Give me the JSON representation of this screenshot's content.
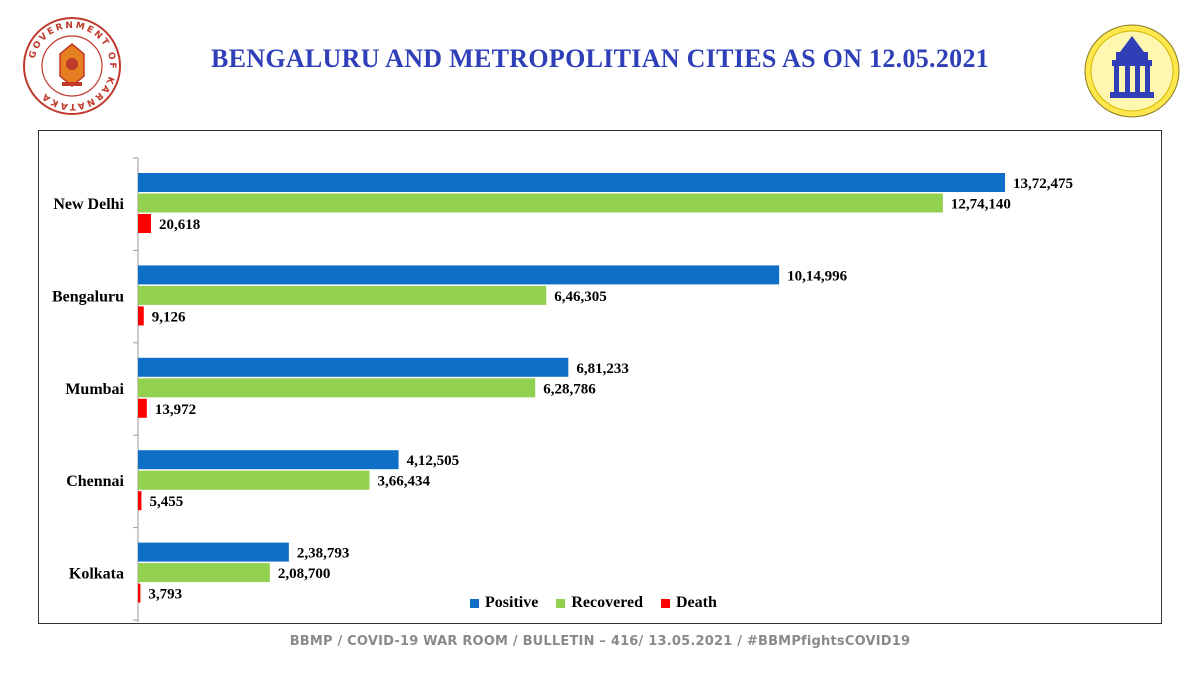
{
  "header": {
    "title": "BENGALURU AND METROPOLITIAN CITIES AS ON 12.05.2021",
    "left_logo_text": "GOVERNMENT OF KARNATAKA"
  },
  "footer": {
    "text": "BBMP / COVID-19 WAR ROOM / BULLETIN – 416/ 13.05.2021 / #BBMPfightsCOVID19"
  },
  "colors": {
    "positive": "#0f6fc6",
    "recovered": "#92d050",
    "death": "#ff0000",
    "title": "#2e3fb8"
  },
  "chart_data": {
    "type": "bar",
    "orientation": "horizontal",
    "categories": [
      "New Delhi",
      "Bengaluru",
      "Mumbai",
      "Chennai",
      "Kolkata"
    ],
    "series": [
      {
        "name": "Positive",
        "values": [
          1372475,
          1014996,
          681233,
          412505,
          238793
        ],
        "labels": [
          "13,72,475",
          "10,14,996",
          "6,81,233",
          "4,12,505",
          "2,38,793"
        ]
      },
      {
        "name": "Recovered",
        "values": [
          1274140,
          646305,
          628786,
          366434,
          208700
        ],
        "labels": [
          "12,74,140",
          "6,46,305",
          "6,28,786",
          "3,66,434",
          "2,08,700"
        ]
      },
      {
        "name": "Death",
        "values": [
          20618,
          9126,
          13972,
          5455,
          3793
        ],
        "labels": [
          "20,618",
          "9,126",
          "13,972",
          "5,455",
          "3,793"
        ]
      }
    ],
    "legend_position": "bottom-center",
    "grid": false
  }
}
